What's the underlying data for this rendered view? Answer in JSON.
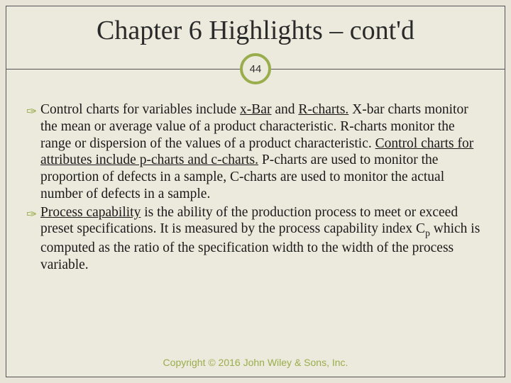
{
  "title": "Chapter 6 Highlights – cont'd",
  "page_number": "44",
  "accent_color": "#9aad4c",
  "background_color": "#eceadd",
  "outer_background": "#e8e5d8",
  "border_color": "#555555",
  "text_color": "#1a1a1a",
  "title_fontsize": 38,
  "body_fontsize": 19.5,
  "footer_fontsize": 14,
  "bullets": [
    {
      "runs": [
        {
          "text": "Control charts for variables include ",
          "u": false
        },
        {
          "text": "x-Bar",
          "u": true
        },
        {
          "text": " and ",
          "u": false
        },
        {
          "text": "R-charts.",
          "u": true
        },
        {
          "text": "  X-bar charts monitor the mean or average value of a product characteristic.  R-charts monitor the range or dispersion of the values of a product characteristic.  ",
          "u": false
        },
        {
          "text": "Control charts for attributes include p-charts and c-charts.",
          "u": true
        },
        {
          "text": "  P-charts are used to monitor the proportion of defects in a sample, C-charts are used to monitor the actual number of defects in a sample.",
          "u": false
        }
      ]
    },
    {
      "runs": [
        {
          "text": "Process capability",
          "u": true
        },
        {
          "text": " is the ability of the production process to meet or exceed preset specifications.  It is measured by the process capability index C",
          "u": false
        },
        {
          "text": "p",
          "sub": true
        },
        {
          "text": " which is computed as the ratio of the specification width to the width of the process variable.",
          "u": false
        }
      ]
    }
  ],
  "footer": "Copyright © 2016 John Wiley & Sons, Inc."
}
